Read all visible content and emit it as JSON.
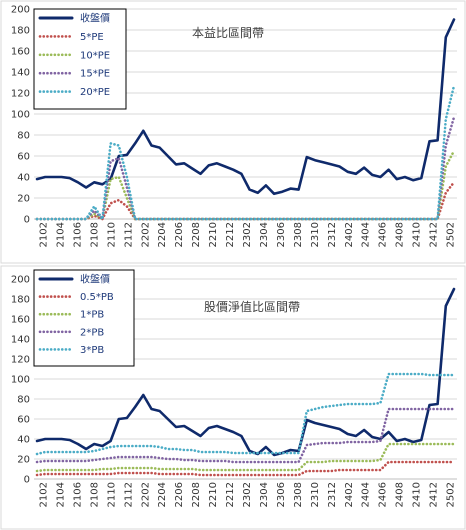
{
  "chart_data": [
    {
      "type": "line",
      "title": "本益比區間帶",
      "xlabel": "",
      "ylabel": "",
      "ylim": [
        0,
        200
      ],
      "yticks": [
        0,
        20,
        40,
        60,
        80,
        100,
        120,
        140,
        160,
        180,
        200
      ],
      "xtick_labels": [
        "2102",
        "2104",
        "2106",
        "2108",
        "2110",
        "2112",
        "2202",
        "2204",
        "2206",
        "2208",
        "2210",
        "2212",
        "2302",
        "2304",
        "2306",
        "2308",
        "2310",
        "2312",
        "2402",
        "2404",
        "2406",
        "2408",
        "2410",
        "2412",
        "2502"
      ],
      "grid": true,
      "legend_position": "top-left",
      "series": [
        {
          "name": "收盤價",
          "color": "#0f2a6b",
          "style": "solid",
          "values": [
            38,
            40,
            40,
            40,
            39,
            35,
            30,
            35,
            33,
            38,
            60,
            61,
            72,
            84,
            70,
            68,
            60,
            52,
            53,
            48,
            43,
            51,
            53,
            50,
            47,
            43,
            28,
            25,
            32,
            24,
            26,
            29,
            28,
            59,
            56,
            54,
            52,
            50,
            45,
            43,
            49,
            42,
            40,
            47,
            38,
            40,
            37,
            39,
            74,
            75,
            173,
            190
          ]
        },
        {
          "name": "5*PE",
          "color": "#c0504d",
          "style": "dotted",
          "values": [
            0,
            0,
            0,
            0,
            0,
            0,
            0,
            3,
            0,
            15,
            18,
            12,
            0,
            0,
            0,
            0,
            0,
            0,
            0,
            0,
            0,
            0,
            0,
            0,
            0,
            0,
            0,
            0,
            0,
            0,
            0,
            0,
            0,
            0,
            0,
            0,
            0,
            0,
            0,
            0,
            0,
            0,
            0,
            0,
            0,
            0,
            0,
            0,
            0,
            0,
            25,
            35
          ]
        },
        {
          "name": "10*PE",
          "color": "#9bbb59",
          "style": "dotted",
          "values": [
            0,
            0,
            0,
            0,
            0,
            0,
            0,
            5,
            0,
            38,
            40,
            20,
            0,
            0,
            0,
            0,
            0,
            0,
            0,
            0,
            0,
            0,
            0,
            0,
            0,
            0,
            0,
            0,
            0,
            0,
            0,
            0,
            0,
            0,
            0,
            0,
            0,
            0,
            0,
            0,
            0,
            0,
            0,
            0,
            0,
            0,
            0,
            0,
            0,
            0,
            50,
            65
          ]
        },
        {
          "name": "15*PE",
          "color": "#8064a2",
          "style": "dotted",
          "values": [
            0,
            0,
            0,
            0,
            0,
            0,
            0,
            8,
            0,
            55,
            58,
            30,
            0,
            0,
            0,
            0,
            0,
            0,
            0,
            0,
            0,
            0,
            0,
            0,
            0,
            0,
            0,
            0,
            0,
            0,
            0,
            0,
            0,
            0,
            0,
            0,
            0,
            0,
            0,
            0,
            0,
            0,
            0,
            0,
            0,
            0,
            0,
            0,
            0,
            0,
            70,
            97
          ]
        },
        {
          "name": "20*PE",
          "color": "#4bacc6",
          "style": "dotted",
          "values": [
            0,
            0,
            0,
            0,
            0,
            0,
            0,
            12,
            0,
            72,
            70,
            40,
            0,
            0,
            0,
            0,
            0,
            0,
            0,
            0,
            0,
            0,
            0,
            0,
            0,
            0,
            0,
            0,
            0,
            0,
            0,
            0,
            0,
            0,
            0,
            0,
            0,
            0,
            0,
            0,
            0,
            0,
            0,
            0,
            0,
            0,
            0,
            0,
            0,
            0,
            95,
            127
          ]
        }
      ]
    },
    {
      "type": "line",
      "title": "股價淨值比區間帶",
      "xlabel": "",
      "ylabel": "",
      "ylim": [
        0,
        200
      ],
      "yticks": [
        0,
        20,
        40,
        60,
        80,
        100,
        120,
        140,
        160,
        180,
        200
      ],
      "xtick_labels": [
        "2102",
        "2104",
        "2106",
        "2108",
        "2110",
        "2112",
        "2202",
        "2204",
        "2206",
        "2208",
        "2210",
        "2212",
        "2302",
        "2304",
        "2306",
        "2308",
        "2310",
        "2312",
        "2402",
        "2404",
        "2406",
        "2408",
        "2410",
        "2412",
        "2502"
      ],
      "grid": true,
      "legend_position": "top-left",
      "series": [
        {
          "name": "收盤價",
          "color": "#0f2a6b",
          "style": "solid",
          "values": [
            38,
            40,
            40,
            40,
            39,
            35,
            30,
            35,
            33,
            38,
            60,
            61,
            72,
            84,
            70,
            68,
            60,
            52,
            53,
            48,
            43,
            51,
            53,
            50,
            47,
            43,
            28,
            25,
            32,
            24,
            26,
            29,
            28,
            59,
            56,
            54,
            52,
            50,
            45,
            43,
            49,
            42,
            40,
            47,
            38,
            40,
            37,
            39,
            74,
            75,
            173,
            190
          ]
        },
        {
          "name": "0.5*PB",
          "color": "#c0504d",
          "style": "dotted",
          "values": [
            4,
            5,
            5,
            5,
            5,
            5,
            5,
            5,
            5,
            5,
            6,
            6,
            6,
            6,
            6,
            5,
            5,
            5,
            5,
            5,
            4,
            4,
            4,
            4,
            4,
            4,
            4,
            4,
            4,
            4,
            4,
            4,
            4,
            8,
            8,
            8,
            8,
            9,
            9,
            9,
            9,
            9,
            9,
            17,
            17,
            17,
            17,
            17,
            17,
            17,
            17,
            17
          ]
        },
        {
          "name": "1*PB",
          "color": "#9bbb59",
          "style": "dotted",
          "values": [
            8,
            9,
            9,
            9,
            9,
            9,
            9,
            9,
            10,
            10,
            11,
            11,
            11,
            11,
            11,
            10,
            10,
            10,
            10,
            10,
            9,
            9,
            9,
            9,
            9,
            9,
            9,
            9,
            9,
            9,
            9,
            9,
            9,
            17,
            17,
            17,
            18,
            18,
            18,
            18,
            18,
            18,
            19,
            35,
            35,
            35,
            35,
            35,
            35,
            35,
            35,
            35
          ]
        },
        {
          "name": "2*PB",
          "color": "#8064a2",
          "style": "dotted",
          "values": [
            17,
            18,
            18,
            18,
            18,
            18,
            18,
            19,
            20,
            21,
            22,
            22,
            22,
            22,
            22,
            21,
            20,
            20,
            19,
            19,
            18,
            18,
            18,
            18,
            17,
            17,
            17,
            17,
            17,
            17,
            17,
            17,
            17,
            34,
            35,
            36,
            36,
            36,
            37,
            37,
            37,
            37,
            38,
            70,
            70,
            70,
            70,
            70,
            70,
            70,
            70,
            70
          ]
        },
        {
          "name": "3*PB",
          "color": "#4bacc6",
          "style": "dotted",
          "values": [
            25,
            27,
            27,
            27,
            27,
            27,
            27,
            28,
            30,
            32,
            33,
            33,
            33,
            33,
            33,
            32,
            30,
            30,
            29,
            29,
            27,
            27,
            27,
            27,
            26,
            26,
            26,
            26,
            26,
            26,
            26,
            26,
            26,
            68,
            70,
            72,
            73,
            74,
            75,
            75,
            75,
            75,
            76,
            105,
            105,
            105,
            105,
            105,
            104,
            104,
            104,
            104
          ]
        }
      ]
    }
  ]
}
